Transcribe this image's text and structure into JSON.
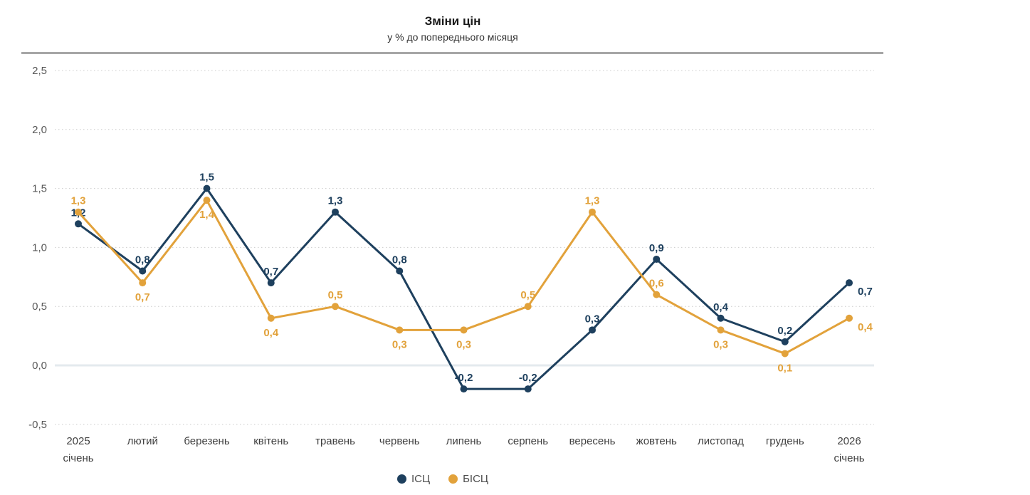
{
  "header": {
    "title": "Зміни цін",
    "subtitle": "у % до попереднього місяця"
  },
  "chart_data": {
    "type": "line",
    "title": "Зміни цін",
    "subtitle": "у % до попереднього місяця",
    "categories": [
      [
        "2025",
        "січень"
      ],
      [
        "лютий"
      ],
      [
        "березень"
      ],
      [
        "квітень"
      ],
      [
        "травень"
      ],
      [
        "червень"
      ],
      [
        "липень"
      ],
      [
        "серпень"
      ],
      [
        "вересень"
      ],
      [
        "жовтень"
      ],
      [
        "листопад"
      ],
      [
        "грудень"
      ],
      [
        "2026",
        "січень"
      ]
    ],
    "series": [
      {
        "name": "ІСЦ",
        "color": "#1e405e",
        "values": [
          1.2,
          0.8,
          1.5,
          0.7,
          1.3,
          0.8,
          -0.2,
          -0.2,
          0.3,
          0.9,
          0.4,
          0.2,
          0.7
        ],
        "labels": [
          "1,2",
          "0,8",
          "1,5",
          "0,7",
          "1,3",
          "0,8",
          "-0,2",
          "-0,2",
          "0,3",
          "0,9",
          "0,4",
          "0,2",
          "0,7"
        ],
        "label_placement": [
          "above",
          "above",
          "above",
          "above",
          "above",
          "above",
          "above",
          "above",
          "above",
          "above",
          "above",
          "above",
          "below-right"
        ]
      },
      {
        "name": "БІСЦ",
        "color": "#e2a23b",
        "values": [
          1.3,
          0.7,
          1.4,
          0.4,
          0.5,
          0.3,
          0.3,
          0.5,
          1.3,
          0.6,
          0.3,
          0.1,
          0.4
        ],
        "labels": [
          "1,3",
          "0,7",
          "1,4",
          "0,4",
          "0,5",
          "0,3",
          "0,3",
          "0,5",
          "1,3",
          "0,6",
          "0,3",
          "0,1",
          "0,4"
        ],
        "label_placement": [
          "above",
          "below",
          "below",
          "below",
          "above",
          "below",
          "below",
          "above",
          "above",
          "above",
          "below",
          "below",
          "below-right"
        ]
      }
    ],
    "y_axis": {
      "ticks": [
        {
          "label": "2,5",
          "value": 2.5
        },
        {
          "label": "2,0",
          "value": 2.0
        },
        {
          "label": "1,5",
          "value": 1.5
        },
        {
          "label": "1,0",
          "value": 1.0
        },
        {
          "label": "0,5",
          "value": 0.5
        },
        {
          "label": "0,0",
          "value": 0.0
        },
        {
          "label": "-0,5",
          "value": -0.5
        }
      ],
      "range": [
        -0.5,
        2.5
      ],
      "grid": "dotted horizontal"
    },
    "legend_position": "bottom",
    "style_colors": {
      "grid": "#cccccc",
      "zero_line": "#e4eaee",
      "top_rule": "#a6a6a6"
    }
  }
}
